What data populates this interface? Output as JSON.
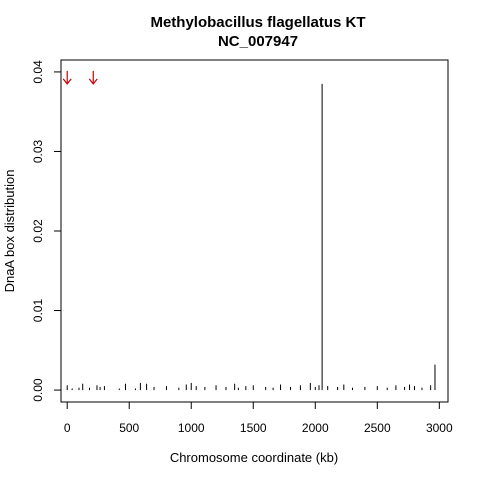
{
  "chart_data": {
    "type": "bar",
    "title_line1": "Methylobacillus flagellatus KT",
    "title_line2": "NC_007947",
    "xlabel": "Chromosome coordinate (kb)",
    "ylabel": "DnaA box distribution",
    "xlim": [
      -50,
      3070
    ],
    "ylim": [
      -0.0015,
      0.0415
    ],
    "x_ticks": [
      0,
      500,
      1000,
      1500,
      2000,
      2500,
      3000
    ],
    "y_ticks": [
      0.0,
      0.01,
      0.02,
      0.03,
      0.04
    ],
    "y_tick_labels": [
      "0.00",
      "0.01",
      "0.02",
      "0.03",
      "0.04"
    ],
    "series": [
      {
        "color": "#000000",
        "x": [
          0,
          40,
          95,
          125,
          180,
          240,
          265,
          300,
          420,
          470,
          550,
          590,
          640,
          700,
          800,
          900,
          960,
          1000,
          1040,
          1110,
          1200,
          1280,
          1350,
          1380,
          1440,
          1500,
          1600,
          1660,
          1720,
          1800,
          1880,
          1960,
          2000,
          2030,
          2055,
          2100,
          2180,
          2230,
          2300,
          2400,
          2500,
          2580,
          2650,
          2720,
          2760,
          2800,
          2860,
          2930,
          2965
        ],
        "values": [
          0.0006,
          0.0002,
          0.0003,
          0.0008,
          0.0003,
          0.0006,
          0.0004,
          0.0005,
          0.0002,
          0.0008,
          0.0002,
          0.0009,
          0.0008,
          0.0004,
          0.0005,
          0.0003,
          0.0007,
          0.0009,
          0.0005,
          0.0004,
          0.0006,
          0.0004,
          0.0008,
          0.0003,
          0.0005,
          0.0006,
          0.0004,
          0.0003,
          0.0007,
          0.0004,
          0.0006,
          0.0009,
          0.0004,
          0.0006,
          0.0385,
          0.0005,
          0.0004,
          0.0007,
          0.0003,
          0.0004,
          0.0005,
          0.0003,
          0.0006,
          0.0004,
          0.0007,
          0.0005,
          0.0003,
          0.0006,
          0.0032
        ]
      }
    ],
    "arrows": {
      "color": "#cc0000",
      "x": [
        0,
        210
      ],
      "y": 0.0385
    }
  }
}
